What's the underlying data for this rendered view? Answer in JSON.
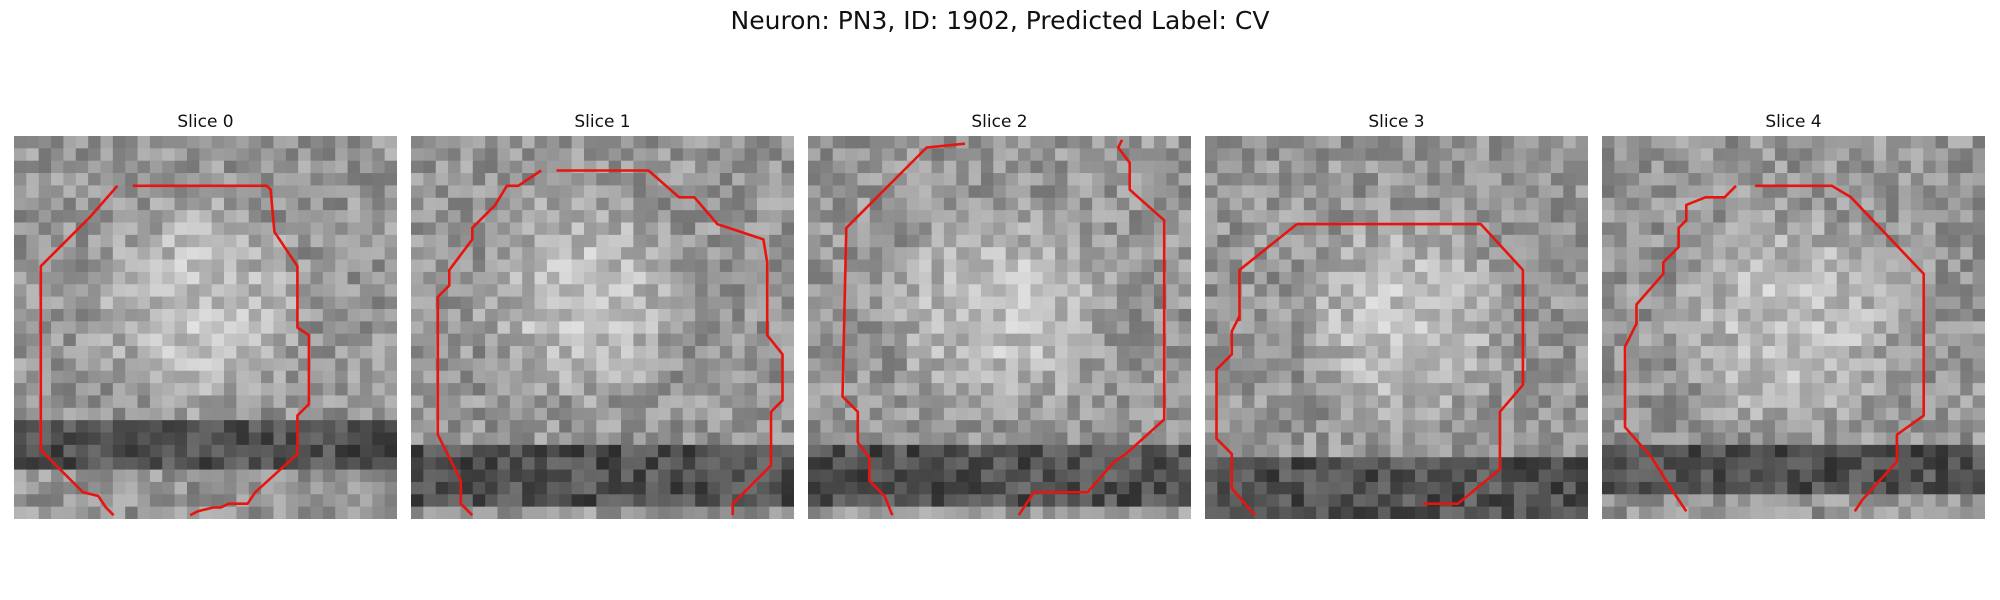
{
  "title": "Neuron: PN3, ID: 1902, Predicted Label: CV",
  "slices": [
    {
      "label": "Slice 0",
      "seed": 11,
      "bright": [
        0.48,
        0.44,
        0.3
      ],
      "dark_band": 0.82,
      "contour": [
        [
          0.31,
          0.13
        ],
        [
          0.66,
          0.13
        ],
        [
          0.67,
          0.14
        ],
        [
          0.68,
          0.25
        ],
        [
          0.74,
          0.34
        ],
        [
          0.74,
          0.5
        ],
        [
          0.77,
          0.52
        ],
        [
          0.77,
          0.7
        ],
        [
          0.74,
          0.73
        ],
        [
          0.74,
          0.83
        ],
        [
          0.63,
          0.93
        ],
        [
          0.61,
          0.96
        ],
        [
          0.56,
          0.96
        ],
        [
          0.54,
          0.97
        ],
        [
          0.52,
          0.97
        ],
        [
          0.48,
          0.98
        ],
        [
          0.46,
          0.99
        ],
        "B",
        [
          0.26,
          0.99
        ],
        [
          0.24,
          0.97
        ],
        [
          0.22,
          0.94
        ],
        [
          0.18,
          0.93
        ],
        [
          0.07,
          0.82
        ],
        [
          0.07,
          0.34
        ],
        [
          0.2,
          0.21
        ],
        [
          0.27,
          0.13
        ]
      ]
    },
    {
      "label": "Slice 1",
      "seed": 23,
      "bright": [
        0.45,
        0.42,
        0.3
      ],
      "dark_band": 0.9,
      "contour": [
        [
          0.38,
          0.09
        ],
        [
          0.62,
          0.09
        ],
        [
          0.7,
          0.16
        ],
        [
          0.74,
          0.16
        ],
        [
          0.8,
          0.23
        ],
        [
          0.92,
          0.27
        ],
        [
          0.93,
          0.33
        ],
        [
          0.93,
          0.52
        ],
        [
          0.97,
          0.57
        ],
        [
          0.97,
          0.69
        ],
        [
          0.94,
          0.72
        ],
        [
          0.94,
          0.86
        ],
        [
          0.84,
          0.96
        ],
        [
          0.84,
          0.99
        ],
        "B",
        [
          0.16,
          0.99
        ],
        [
          0.13,
          0.96
        ],
        [
          0.13,
          0.9
        ],
        [
          0.1,
          0.84
        ],
        [
          0.07,
          0.78
        ],
        [
          0.07,
          0.42
        ],
        [
          0.1,
          0.39
        ],
        [
          0.1,
          0.35
        ],
        [
          0.16,
          0.27
        ],
        [
          0.16,
          0.24
        ],
        [
          0.22,
          0.18
        ],
        [
          0.25,
          0.13
        ],
        [
          0.28,
          0.13
        ],
        [
          0.34,
          0.09
        ]
      ]
    },
    {
      "label": "Slice 2",
      "seed": 37,
      "bright": [
        0.5,
        0.45,
        0.32
      ],
      "dark_band": 0.9,
      "contour": [
        [
          0.41,
          0.02
        ],
        [
          0.31,
          0.03
        ],
        [
          0.2,
          0.14
        ],
        [
          0.1,
          0.24
        ],
        [
          0.09,
          0.68
        ],
        [
          0.13,
          0.72
        ],
        [
          0.13,
          0.8
        ],
        [
          0.16,
          0.84
        ],
        [
          0.16,
          0.9
        ],
        [
          0.2,
          0.94
        ],
        [
          0.22,
          0.99
        ],
        "B",
        [
          0.55,
          0.99
        ],
        [
          0.59,
          0.93
        ],
        [
          0.73,
          0.93
        ],
        [
          0.8,
          0.85
        ],
        [
          0.83,
          0.83
        ],
        [
          0.93,
          0.74
        ],
        [
          0.93,
          0.22
        ],
        [
          0.84,
          0.14
        ],
        [
          0.84,
          0.07
        ],
        [
          0.81,
          0.03
        ],
        [
          0.82,
          0.01
        ]
      ]
    },
    {
      "label": "Slice 3",
      "seed": 53,
      "bright": [
        0.52,
        0.48,
        0.3
      ],
      "dark_band": 0.93,
      "contour": [
        [
          0.24,
          0.23
        ],
        [
          0.72,
          0.23
        ],
        [
          0.83,
          0.35
        ],
        [
          0.83,
          0.65
        ],
        [
          0.77,
          0.72
        ],
        [
          0.77,
          0.87
        ],
        [
          0.66,
          0.96
        ],
        [
          0.57,
          0.96
        ],
        "B",
        [
          0.13,
          0.99
        ],
        [
          0.07,
          0.92
        ],
        [
          0.07,
          0.83
        ],
        [
          0.03,
          0.79
        ],
        [
          0.03,
          0.61
        ],
        [
          0.07,
          0.57
        ],
        [
          0.07,
          0.51
        ],
        [
          0.09,
          0.47
        ],
        [
          0.09,
          0.46
        ],
        [
          0.09,
          0.43
        ],
        [
          0.09,
          0.4
        ],
        [
          0.09,
          0.46
        ],
        [
          0.09,
          0.45
        ],
        [
          0.09,
          0.44
        ],
        [
          0.09,
          0.43
        ],
        [
          0.09,
          0.45
        ],
        [
          0.09,
          0.48
        ],
        [
          0.09,
          0.41
        ],
        [
          0.09,
          0.37
        ],
        [
          0.09,
          0.36
        ],
        [
          0.09,
          0.35
        ],
        [
          0.24,
          0.23
        ]
      ]
    },
    {
      "label": "Slice 4",
      "seed": 71,
      "bright": [
        0.5,
        0.48,
        0.32
      ],
      "dark_band": 0.88,
      "contour": [
        [
          0.4,
          0.13
        ],
        [
          0.6,
          0.13
        ],
        [
          0.65,
          0.16
        ],
        [
          0.84,
          0.36
        ],
        [
          0.84,
          0.73
        ],
        [
          0.77,
          0.78
        ],
        [
          0.77,
          0.85
        ],
        [
          0.68,
          0.95
        ],
        [
          0.66,
          0.98
        ],
        "B",
        [
          0.22,
          0.98
        ],
        [
          0.18,
          0.92
        ],
        [
          0.13,
          0.84
        ],
        [
          0.06,
          0.76
        ],
        [
          0.06,
          0.55
        ],
        [
          0.09,
          0.49
        ],
        [
          0.09,
          0.44
        ],
        [
          0.16,
          0.36
        ],
        [
          0.16,
          0.33
        ],
        [
          0.2,
          0.29
        ],
        [
          0.2,
          0.24
        ],
        [
          0.22,
          0.22
        ],
        [
          0.22,
          0.18
        ],
        [
          0.27,
          0.16
        ],
        [
          0.32,
          0.16
        ],
        [
          0.35,
          0.13
        ]
      ]
    }
  ]
}
